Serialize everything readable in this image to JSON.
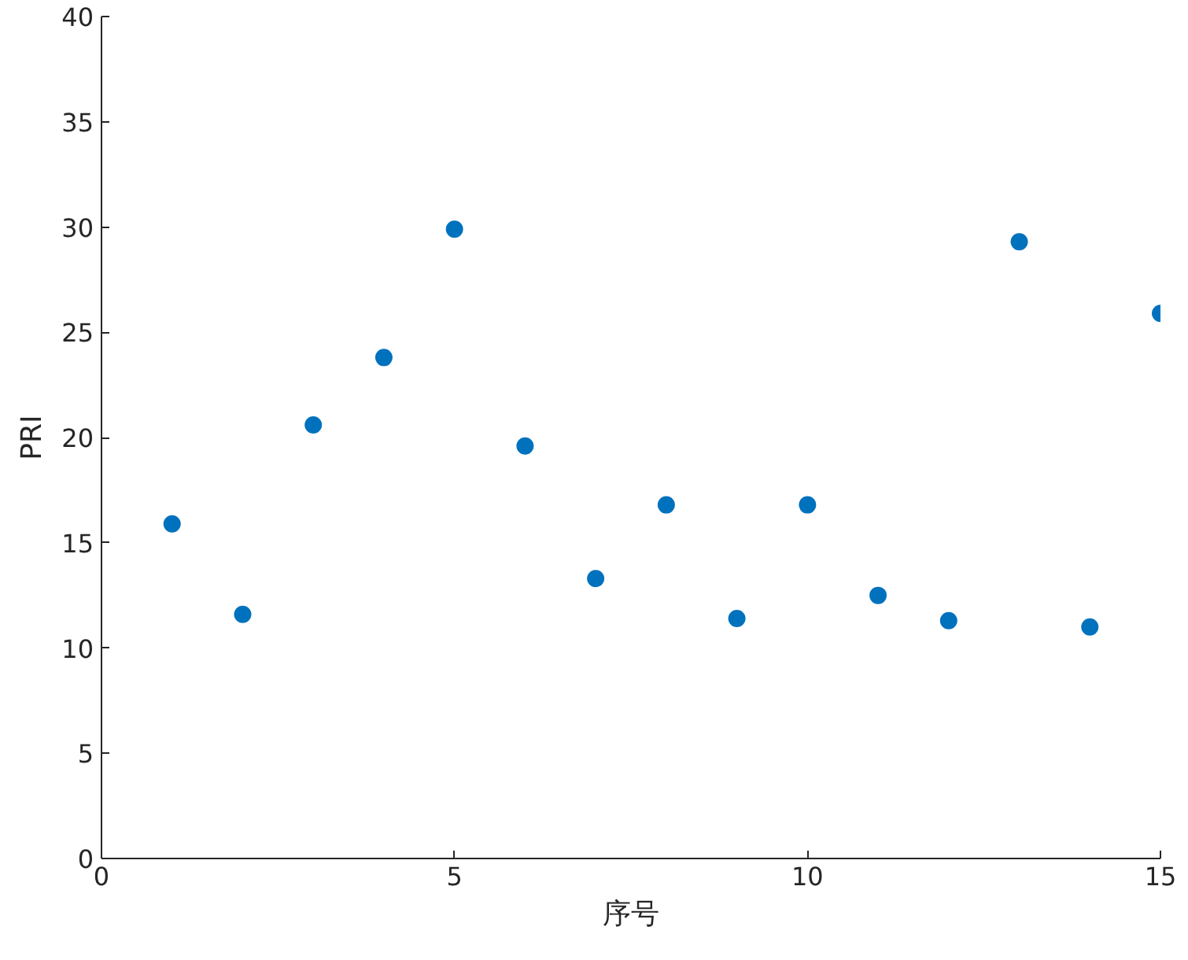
{
  "chart_data": {
    "type": "scatter",
    "xlabel": "序号",
    "ylabel": "PRI",
    "x": [
      1,
      2,
      3,
      4,
      5,
      6,
      7,
      8,
      9,
      10,
      11,
      12,
      13,
      14,
      15
    ],
    "series": [
      {
        "color": "#0072bd",
        "values": [
          15.9,
          11.6,
          20.6,
          23.8,
          29.9,
          19.6,
          13.3,
          16.8,
          11.4,
          16.8,
          12.5,
          11.3,
          29.3,
          11.0,
          25.9
        ]
      }
    ],
    "xlim": [
      0,
      15
    ],
    "xticks": [
      0,
      5,
      10,
      15
    ],
    "ylim": [
      0,
      40
    ],
    "yticks": [
      0,
      5,
      10,
      15,
      20,
      25,
      30,
      35,
      40
    ],
    "marker": "circle"
  }
}
